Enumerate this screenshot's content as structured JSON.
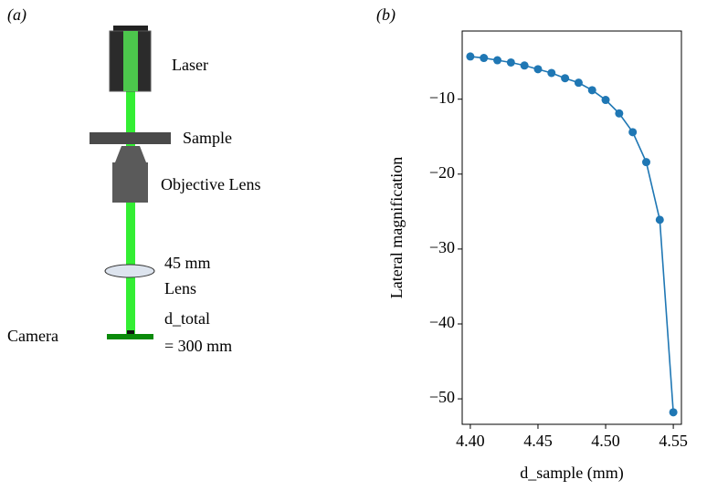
{
  "diagram": {
    "panel_a": "(a)",
    "panel_b": "(b)",
    "laser": "Laser",
    "sample": "Sample",
    "objective": "Objective Lens",
    "lens_focal": "45 mm",
    "lens": "Lens",
    "camera": "Camera",
    "distance_name": "d_total",
    "distance_value": "= 300 mm"
  },
  "chart_data": {
    "type": "line",
    "x_label": "d_sample (mm)",
    "y_label": "Lateral magnification",
    "x": [
      4.4,
      4.41,
      4.42,
      4.43,
      4.44,
      4.45,
      4.46,
      4.47,
      4.48,
      4.49,
      4.5,
      4.51,
      4.52,
      4.53,
      4.54,
      4.55
    ],
    "series": [
      {
        "color": "#1f77b4",
        "values": [
          -4.3,
          -4.5,
          -4.8,
          -5.1,
          -5.5,
          -6.0,
          -6.5,
          -7.2,
          -7.8,
          -8.8,
          -10.1,
          -11.9,
          -14.4,
          -18.4,
          -26.1,
          -51.8
        ]
      }
    ],
    "xlim": [
      4.394,
      4.556
    ],
    "ylim": [
      -53.4,
      -0.9
    ],
    "xticks": [
      {
        "value": 4.4,
        "label": "4.40"
      },
      {
        "value": 4.45,
        "label": "4.45"
      },
      {
        "value": 4.5,
        "label": "4.50"
      },
      {
        "value": 4.55,
        "label": "4.55"
      }
    ],
    "yticks": [
      {
        "value": -10,
        "label": "−10"
      },
      {
        "value": -20,
        "label": "−20"
      },
      {
        "value": -30,
        "label": "−30"
      },
      {
        "value": -40,
        "label": "−40"
      },
      {
        "value": -50,
        "label": "−50"
      }
    ]
  }
}
